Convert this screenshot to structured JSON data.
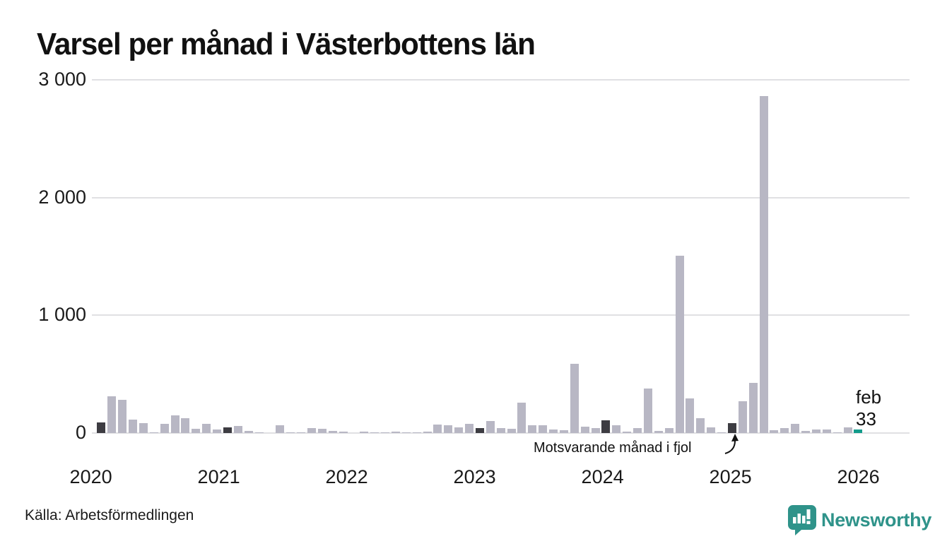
{
  "title": "Varsel per månad i Västerbottens län",
  "source": "Källa: Arbetsförmedlingen",
  "annotation": {
    "text": "Motsvarande månad i fjol"
  },
  "last_point_label": {
    "month": "feb",
    "value": "33"
  },
  "logo": {
    "text": "Newsworthy"
  },
  "colors": {
    "bar_normal": "#b8b7c4",
    "bar_prior_february": "#3d3c42",
    "bar_latest": "#129b8b",
    "gridline": "#e0e0e3",
    "text": "#111111",
    "logo_teal": "#2f938a"
  },
  "chart_data": {
    "type": "bar",
    "title": "Varsel per månad i Västerbottens län",
    "xlabel": "",
    "ylabel": "",
    "ylim": [
      0,
      3000
    ],
    "y_ticks": [
      0,
      1000,
      2000,
      3000
    ],
    "y_tick_labels": [
      "0",
      "1 000",
      "2 000",
      "3 000"
    ],
    "x_tick_labels": [
      "2020",
      "2021",
      "2022",
      "2023",
      "2024",
      "2025",
      "2026"
    ],
    "grid": "horizontal",
    "legend": "none",
    "series_by_year": [
      {
        "year": "2020",
        "values": [
          0,
          90,
          310,
          285,
          115,
          85,
          5,
          80,
          150,
          125,
          35,
          80
        ]
      },
      {
        "year": "2021",
        "values": [
          30,
          50,
          62,
          18,
          8,
          0,
          66,
          3,
          5,
          42,
          36,
          18
        ]
      },
      {
        "year": "2022",
        "values": [
          12,
          0,
          12,
          2,
          2,
          15,
          9,
          3,
          15,
          72,
          66,
          48
        ]
      },
      {
        "year": "2023",
        "values": [
          78,
          45,
          100,
          44,
          34,
          258,
          66,
          66,
          30,
          22,
          590,
          55
        ]
      },
      {
        "year": "2024",
        "values": [
          40,
          110,
          68,
          10,
          40,
          378,
          20,
          40,
          1505,
          292,
          128,
          48
        ]
      },
      {
        "year": "2025",
        "values": [
          4,
          84,
          268,
          428,
          2865,
          22,
          42,
          78,
          16,
          28,
          28,
          2
        ]
      },
      {
        "year": "2026",
        "values": [
          48,
          33
        ]
      }
    ],
    "february_marked_dark": true,
    "latest_month": {
      "label": "feb",
      "value": 33
    },
    "annotated_bar": {
      "month": "feb 2025",
      "note": "Motsvarande månad i fjol"
    }
  }
}
